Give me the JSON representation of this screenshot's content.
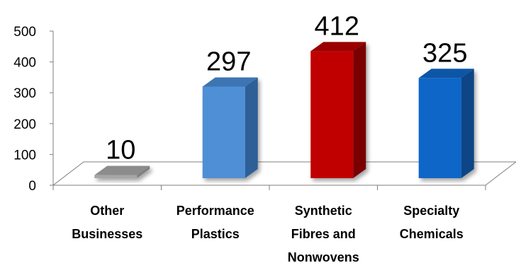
{
  "chart_data": {
    "type": "bar",
    "title": "",
    "xlabel": "",
    "ylabel": "",
    "ylim": [
      0,
      500
    ],
    "yticks": [
      0,
      100,
      200,
      300,
      400,
      500
    ],
    "grid": false,
    "style": "3d-column",
    "categories": [
      [
        "Other",
        "Businesses"
      ],
      [
        "Performance",
        "Plastics"
      ],
      [
        "Synthetic",
        "Fibres and",
        "Nonwovens"
      ],
      [
        "Specialty",
        "Chemicals"
      ]
    ],
    "values": [
      10,
      297,
      412,
      325
    ],
    "data_labels": [
      "10",
      "297",
      "412",
      "325"
    ],
    "colors": [
      {
        "front": "#a6a6a6",
        "side": "#7f7f7f",
        "top": "#8c8c8c"
      },
      {
        "front": "#4f8fd6",
        "side": "#2f5f97",
        "top": "#3e74b3"
      },
      {
        "front": "#c00000",
        "side": "#7a0000",
        "top": "#9a0000"
      },
      {
        "front": "#1166c8",
        "side": "#0a4586",
        "top": "#0d56a6"
      }
    ],
    "floor_color": "#ffffff",
    "axis_color": "#7f7f7f"
  }
}
